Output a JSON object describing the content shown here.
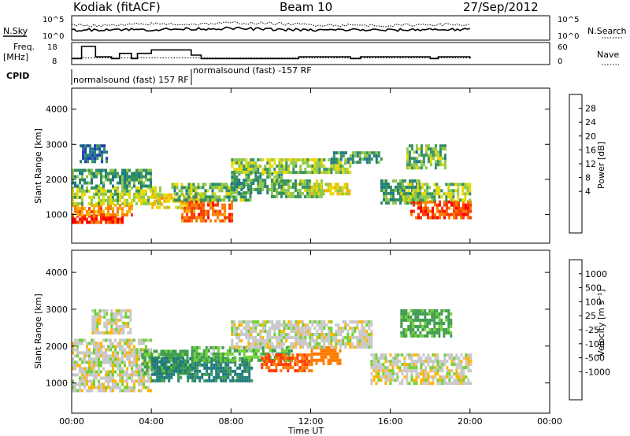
{
  "header": {
    "station": "Kodiak (fitACF)",
    "beam": "Beam 10",
    "date": "27/Sep/2012"
  },
  "left_labels": {
    "nsky": "N.Sky",
    "freq_line1": "Freq.",
    "freq_line2": "[MHz]",
    "cpid": "CPID"
  },
  "right_labels": {
    "nsearch": "N.Search",
    "nave": "Nave"
  },
  "noise_axis": {
    "left_top": "10^5",
    "left_bottom": "10^0",
    "right_top": "10^5",
    "right_bottom": "10^0"
  },
  "freq_axis": {
    "ticks": [
      "18",
      "8"
    ],
    "nave_ticks": [
      "60",
      "0"
    ]
  },
  "cpid": {
    "first": "normalsound (fast) 157 RF",
    "second": "normalsound (fast) -157 RF"
  },
  "power_colorbar": {
    "label": "Power [dB]",
    "ticks": [
      "28",
      "24",
      "20",
      "16",
      "12",
      "8",
      "4"
    ],
    "colors": [
      "#ff0000",
      "#f83a00",
      "#fa7d00",
      "#f7b200",
      "#e6d800",
      "#8ec74a",
      "#37915c",
      "#1e7a84",
      "#1c3ab1",
      "#1010f0"
    ]
  },
  "velocity_colorbar": {
    "label": "Velocity [m s⁻¹]",
    "ticks": [
      "1000",
      "500",
      "100",
      "25",
      "-25",
      "-100",
      "-500",
      "-1000"
    ],
    "colors": [
      "#1f3ab9",
      "#1f7a78",
      "#3e9b4e",
      "#6fd133",
      "#c8c8c8",
      "#c8c8c8",
      "#ffb400",
      "#ff7a00",
      "#ff3a00",
      "#ff0000"
    ]
  },
  "chart_data": [
    {
      "type": "heatmap",
      "panel": "power",
      "xlabel": "",
      "ylabel": "Slant Range [km]",
      "xlim": [
        0,
        24
      ],
      "ylim": [
        180,
        4600
      ],
      "yticks": [
        "4000",
        "3000",
        "2000",
        "1000"
      ],
      "zlim": [
        0,
        30
      ],
      "regions": [
        {
          "t": [
            0.0,
            2.5
          ],
          "r": [
            800,
            1000
          ],
          "p": 28
        },
        {
          "t": [
            0.0,
            3.0
          ],
          "r": [
            1000,
            1300
          ],
          "p": 22
        },
        {
          "t": [
            0.0,
            4.5
          ],
          "r": [
            1300,
            1800
          ],
          "p": 14
        },
        {
          "t": [
            0.0,
            4.0
          ],
          "r": [
            1800,
            2300
          ],
          "p": 10
        },
        {
          "t": [
            0.4,
            1.8
          ],
          "r": [
            2500,
            3000
          ],
          "p": 6
        },
        {
          "t": [
            4.0,
            6.5
          ],
          "r": [
            1200,
            1600
          ],
          "p": 18
        },
        {
          "t": [
            5.5,
            8.0
          ],
          "r": [
            800,
            1400
          ],
          "p": 25
        },
        {
          "t": [
            5.0,
            9.0
          ],
          "r": [
            1400,
            1900
          ],
          "p": 12
        },
        {
          "t": [
            8.0,
            10.5
          ],
          "r": [
            1600,
            2200
          ],
          "p": 10
        },
        {
          "t": [
            10.0,
            12.5
          ],
          "r": [
            1500,
            2000
          ],
          "p": 12
        },
        {
          "t": [
            12.0,
            14.0
          ],
          "r": [
            1600,
            1900
          ],
          "p": 16
        },
        {
          "t": [
            8.0,
            14.0
          ],
          "r": [
            2200,
            2600
          ],
          "p": 14
        },
        {
          "t": [
            13.0,
            15.5
          ],
          "r": [
            2500,
            2800
          ],
          "p": 10
        },
        {
          "t": [
            15.5,
            17.5
          ],
          "r": [
            1300,
            2000
          ],
          "p": 10
        },
        {
          "t": [
            17.0,
            20.0
          ],
          "r": [
            900,
            1400
          ],
          "p": 26
        },
        {
          "t": [
            16.5,
            20.0
          ],
          "r": [
            1400,
            1900
          ],
          "p": 14
        },
        {
          "t": [
            16.8,
            18.8
          ],
          "r": [
            2300,
            3000
          ],
          "p": 12
        }
      ]
    },
    {
      "type": "heatmap",
      "panel": "velocity",
      "xlabel": "Time UT",
      "ylabel": "Slant Range [km]",
      "xlim": [
        0,
        24
      ],
      "ylim": [
        180,
        4600
      ],
      "yticks": [
        "4000",
        "3000",
        "2000",
        "1000"
      ],
      "xticks": [
        "00:00",
        "04:00",
        "08:00",
        "12:00",
        "16:00",
        "20:00",
        "00:00"
      ],
      "zlim": [
        -1000,
        1000
      ],
      "regions": [
        {
          "t": [
            0.0,
            4.0
          ],
          "r": [
            800,
            2200
          ],
          "v": 0
        },
        {
          "t": [
            1.0,
            3.0
          ],
          "r": [
            2400,
            3000
          ],
          "v": 0
        },
        {
          "t": [
            3.5,
            6.0
          ],
          "r": [
            1300,
            1900
          ],
          "v": 80
        },
        {
          "t": [
            4.0,
            9.0
          ],
          "r": [
            1100,
            1700
          ],
          "v": 400
        },
        {
          "t": [
            6.0,
            11.0
          ],
          "r": [
            1600,
            2000
          ],
          "v": 60
        },
        {
          "t": [
            9.5,
            12.0
          ],
          "r": [
            1300,
            1800
          ],
          "v": -300
        },
        {
          "t": [
            12.0,
            13.5
          ],
          "r": [
            1500,
            2000
          ],
          "v": -200
        },
        {
          "t": [
            8.0,
            15.0
          ],
          "r": [
            2000,
            2700
          ],
          "v": 0
        },
        {
          "t": [
            15.0,
            20.0
          ],
          "r": [
            1000,
            1800
          ],
          "v": 0
        },
        {
          "t": [
            16.5,
            19.0
          ],
          "r": [
            2300,
            3000
          ],
          "v": 80
        }
      ]
    },
    {
      "type": "line",
      "panel": "noise",
      "series": [
        {
          "name": "N.Sky",
          "x": [
            0,
            2,
            4,
            6,
            8,
            10,
            12,
            14,
            16,
            18,
            20
          ],
          "y": [
            2.0,
            2.2,
            2.1,
            2.3,
            2.4,
            2.2,
            2.0,
            2.1,
            2.0,
            2.2,
            2.1
          ]
        },
        {
          "name": "N.Search",
          "x": [
            0,
            2,
            4,
            6,
            8,
            10,
            12,
            14,
            16,
            18,
            20
          ],
          "y": [
            3.2,
            3.0,
            3.4,
            3.3,
            3.6,
            3.5,
            3.2,
            3.1,
            3.0,
            3.3,
            3.2
          ]
        }
      ]
    },
    {
      "type": "line",
      "panel": "frequency",
      "series": [
        {
          "name": "Freq.",
          "x": [
            0,
            0.5,
            1.2,
            2.0,
            2.4,
            3.0,
            3.3,
            4.0,
            6.0,
            6.5,
            11.0,
            11.4,
            14.0,
            14.5,
            18.0,
            18.4,
            20.0
          ],
          "y": [
            11,
            18,
            12,
            11,
            14,
            11,
            14,
            16,
            13,
            11,
            11,
            12,
            11,
            12,
            11,
            12,
            11
          ]
        },
        {
          "name": "Nave",
          "x": [
            0,
            20
          ],
          "y": [
            20,
            20
          ]
        }
      ]
    }
  ]
}
